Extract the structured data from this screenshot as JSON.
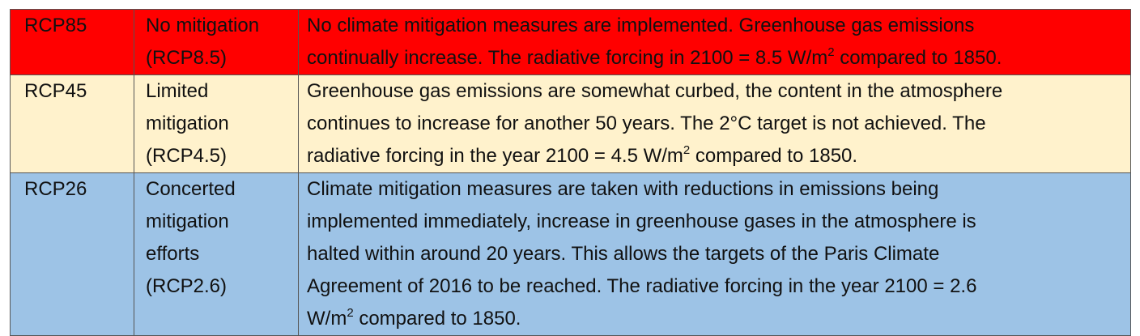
{
  "rows": [
    {
      "code": "RCP85",
      "name_lines": [
        "No mitigation",
        "(RCP8.5)"
      ],
      "desc_lines": [
        "No climate mitigation measures are implemented. Greenhouse gas emissions",
        "continually increase. The radiative forcing in 2100 = 8.5 W/m",
        "2",
        " compared to 1850."
      ],
      "color": "#ff0000"
    },
    {
      "code": "RCP45",
      "name_lines": [
        "Limited",
        "mitigation",
        "(RCP4.5)"
      ],
      "desc_lines": [
        "Greenhouse gas emissions are somewhat curbed, the content in the atmosphere",
        "continues to increase for another 50 years. The 2°C target is not achieved. The",
        "radiative forcing in the year 2100 = 4.5 W/m",
        "2",
        " compared to 1850."
      ],
      "color": "#fff2cc"
    },
    {
      "code": "RCP26",
      "name_lines": [
        "Concerted",
        "mitigation",
        "efforts",
        "(RCP2.6)"
      ],
      "desc_lines": [
        "Climate mitigation measures are taken with reductions in emissions being",
        "implemented immediately, increase in greenhouse gases in the atmosphere is",
        "halted within around 20 years. This allows the targets of the Paris Climate",
        "Agreement of 2016 to be reached. The radiative forcing in the year 2100 = 2.6",
        "W/m",
        "2",
        " compared to 1850."
      ],
      "color": "#9dc3e6"
    }
  ]
}
